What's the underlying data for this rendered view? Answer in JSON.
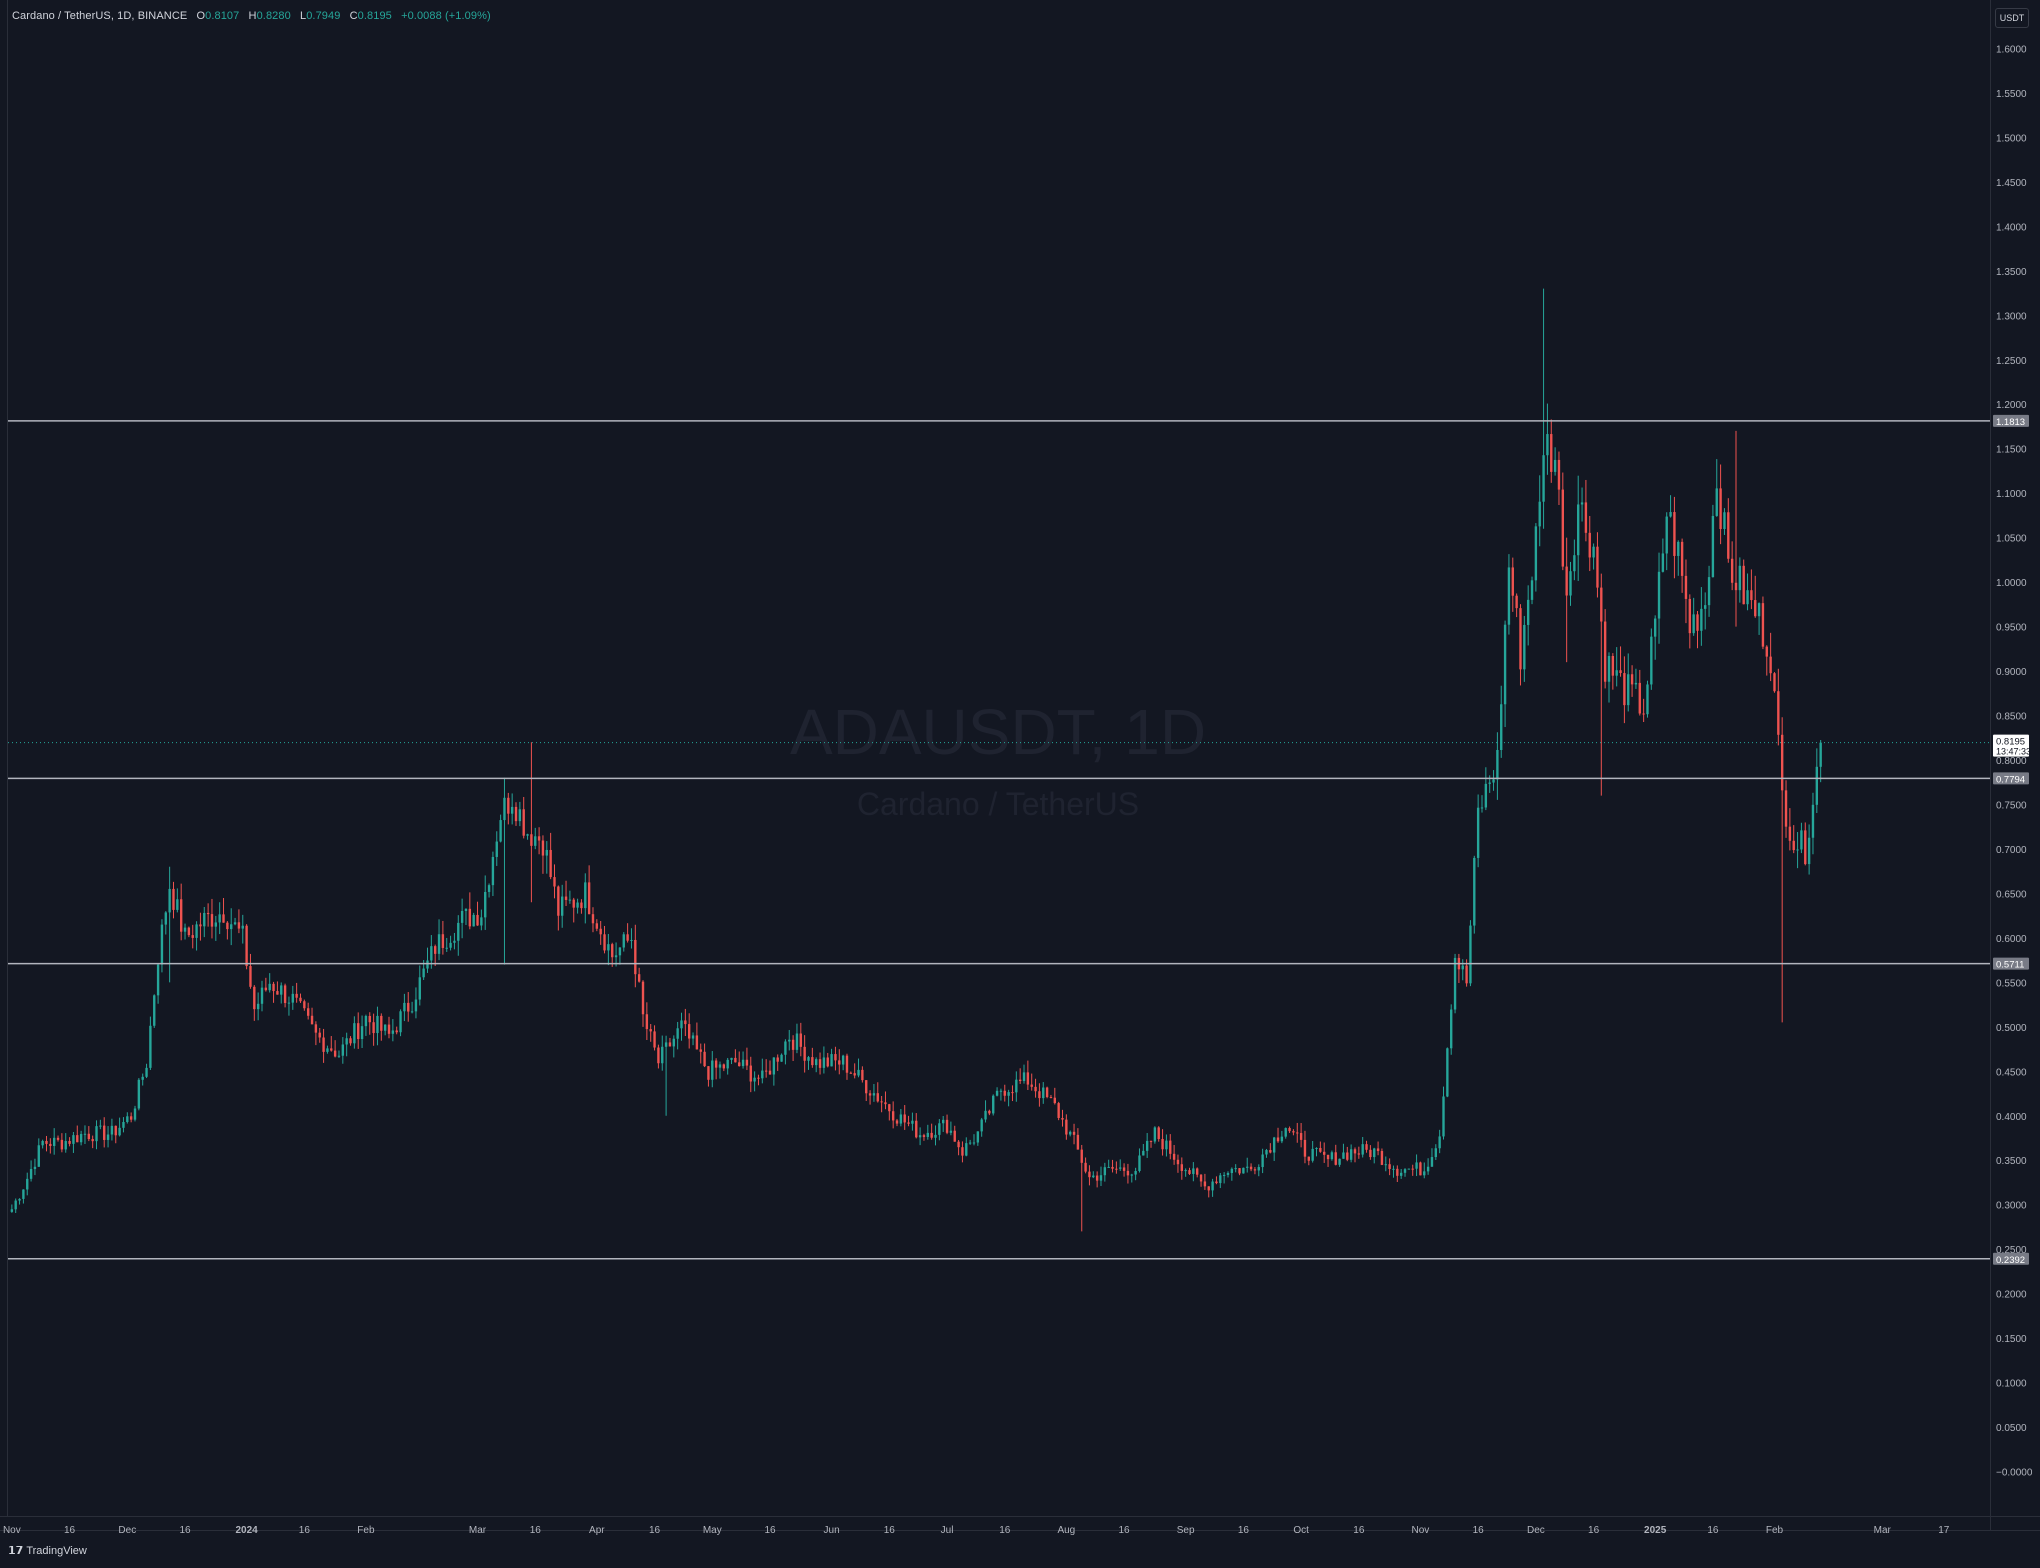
{
  "legend": {
    "symbol": "Cardano / TetherUS, 1D, BINANCE",
    "o_label": "O",
    "o": "0.8107",
    "h_label": "H",
    "h": "0.8280",
    "l_label": "L",
    "l": "0.7949",
    "c_label": "C",
    "c": "0.8195",
    "change": "+0.0088 (+1.09%)"
  },
  "watermark": {
    "title": "ADAUSDT, 1D",
    "subtitle": "Cardano / TetherUS"
  },
  "scale_button": "USDT",
  "footer": {
    "brand": "TradingView"
  },
  "current_price": {
    "value": "0.8195",
    "countdown": "13:47:33"
  },
  "colors": {
    "up": "#26a69a",
    "down": "#ef5350",
    "background": "#131722",
    "hline": "#b2b5be"
  },
  "chart_data": {
    "type": "candlestick",
    "symbol": "ADAUSDT",
    "interval": "1D",
    "ylim": [
      -0.05,
      1.65
    ],
    "y_ticks": [
      "1.6000",
      "1.5500",
      "1.5000",
      "1.4500",
      "1.4000",
      "1.3500",
      "1.3000",
      "1.2500",
      "1.2000",
      "1.1500",
      "1.1000",
      "1.0500",
      "1.0000",
      "0.9500",
      "0.9000",
      "0.8500",
      "0.8000",
      "0.7500",
      "0.7000",
      "0.6500",
      "0.6000",
      "0.5500",
      "0.5000",
      "0.4500",
      "0.4000",
      "0.3500",
      "0.3000",
      "0.2500",
      "0.2000",
      "0.1500",
      "0.1000",
      "0.0500",
      "−0.0000"
    ],
    "x_range": [
      "2023-10-31",
      "2025-03-29"
    ],
    "x_ticks": [
      {
        "label": "Nov",
        "date": "2023-11-01",
        "bold": false
      },
      {
        "label": "16",
        "date": "2023-11-16",
        "bold": false
      },
      {
        "label": "Dec",
        "date": "2023-12-01",
        "bold": false
      },
      {
        "label": "16",
        "date": "2023-12-16",
        "bold": false
      },
      {
        "label": "2024",
        "date": "2024-01-01",
        "bold": true
      },
      {
        "label": "16",
        "date": "2024-01-16",
        "bold": false
      },
      {
        "label": "Feb",
        "date": "2024-02-01",
        "bold": false
      },
      {
        "label": "Mar",
        "date": "2024-03-01",
        "bold": false
      },
      {
        "label": "16",
        "date": "2024-03-16",
        "bold": false
      },
      {
        "label": "Apr",
        "date": "2024-04-01",
        "bold": false
      },
      {
        "label": "16",
        "date": "2024-04-16",
        "bold": false
      },
      {
        "label": "May",
        "date": "2024-05-01",
        "bold": false
      },
      {
        "label": "16",
        "date": "2024-05-16",
        "bold": false
      },
      {
        "label": "Jun",
        "date": "2024-06-01",
        "bold": false
      },
      {
        "label": "16",
        "date": "2024-06-16",
        "bold": false
      },
      {
        "label": "Jul",
        "date": "2024-07-01",
        "bold": false
      },
      {
        "label": "16",
        "date": "2024-07-16",
        "bold": false
      },
      {
        "label": "Aug",
        "date": "2024-08-01",
        "bold": false
      },
      {
        "label": "16",
        "date": "2024-08-16",
        "bold": false
      },
      {
        "label": "Sep",
        "date": "2024-09-01",
        "bold": false
      },
      {
        "label": "16",
        "date": "2024-09-16",
        "bold": false
      },
      {
        "label": "Oct",
        "date": "2024-10-01",
        "bold": false
      },
      {
        "label": "16",
        "date": "2024-10-16",
        "bold": false
      },
      {
        "label": "Nov",
        "date": "2024-11-01",
        "bold": false
      },
      {
        "label": "16",
        "date": "2024-11-16",
        "bold": false
      },
      {
        "label": "Dec",
        "date": "2024-12-01",
        "bold": false
      },
      {
        "label": "16",
        "date": "2024-12-16",
        "bold": false
      },
      {
        "label": "2025",
        "date": "2025-01-01",
        "bold": true
      },
      {
        "label": "16",
        "date": "2025-01-16",
        "bold": false
      },
      {
        "label": "Feb",
        "date": "2025-02-01",
        "bold": false
      },
      {
        "label": "Mar",
        "date": "2025-03-01",
        "bold": false
      },
      {
        "label": "17",
        "date": "2025-03-17",
        "bold": false
      }
    ],
    "horizontal_lines": [
      {
        "price": 1.1813,
        "label": "1.1813"
      },
      {
        "price": 0.7794,
        "label": "0.7794"
      },
      {
        "price": 0.5711,
        "label": "0.5711"
      },
      {
        "price": 0.2392,
        "label": "0.2392"
      }
    ],
    "close_path": [
      [
        "2023-11-01",
        0.295
      ],
      [
        "2023-11-05",
        0.33
      ],
      [
        "2023-11-09",
        0.37
      ],
      [
        "2023-11-14",
        0.37
      ],
      [
        "2023-11-20",
        0.38
      ],
      [
        "2023-11-27",
        0.38
      ],
      [
        "2023-12-02",
        0.4
      ],
      [
        "2023-12-06",
        0.46
      ],
      [
        "2023-12-09",
        0.58
      ],
      [
        "2023-12-12",
        0.66
      ],
      [
        "2023-12-16",
        0.6
      ],
      [
        "2023-12-21",
        0.62
      ],
      [
        "2023-12-26",
        0.63
      ],
      [
        "2023-12-31",
        0.6
      ],
      [
        "2024-01-03",
        0.52
      ],
      [
        "2024-01-07",
        0.55
      ],
      [
        "2024-01-13",
        0.53
      ],
      [
        "2024-01-19",
        0.49
      ],
      [
        "2024-01-25",
        0.47
      ],
      [
        "2024-02-01",
        0.51
      ],
      [
        "2024-02-07",
        0.49
      ],
      [
        "2024-02-13",
        0.53
      ],
      [
        "2024-02-19",
        0.59
      ],
      [
        "2024-02-26",
        0.62
      ],
      [
        "2024-03-02",
        0.63
      ],
      [
        "2024-03-07",
        0.74
      ],
      [
        "2024-03-10",
        0.76
      ],
      [
        "2024-03-14",
        0.72
      ],
      [
        "2024-03-18",
        0.71
      ],
      [
        "2024-03-22",
        0.63
      ],
      [
        "2024-03-29",
        0.65
      ],
      [
        "2024-04-05",
        0.58
      ],
      [
        "2024-04-10",
        0.6
      ],
      [
        "2024-04-13",
        0.51
      ],
      [
        "2024-04-17",
        0.46
      ],
      [
        "2024-04-23",
        0.5
      ],
      [
        "2024-04-30",
        0.45
      ],
      [
        "2024-05-07",
        0.46
      ],
      [
        "2024-05-14",
        0.44
      ],
      [
        "2024-05-21",
        0.49
      ],
      [
        "2024-05-28",
        0.46
      ],
      [
        "2024-06-04",
        0.46
      ],
      [
        "2024-06-11",
        0.43
      ],
      [
        "2024-06-18",
        0.4
      ],
      [
        "2024-06-24",
        0.38
      ],
      [
        "2024-07-01",
        0.39
      ],
      [
        "2024-07-05",
        0.36
      ],
      [
        "2024-07-09",
        0.38
      ],
      [
        "2024-07-15",
        0.43
      ],
      [
        "2024-07-22",
        0.44
      ],
      [
        "2024-07-29",
        0.41
      ],
      [
        "2024-08-03",
        0.37
      ],
      [
        "2024-08-07",
        0.33
      ],
      [
        "2024-08-13",
        0.34
      ],
      [
        "2024-08-19",
        0.34
      ],
      [
        "2024-08-24",
        0.38
      ],
      [
        "2024-08-30",
        0.35
      ],
      [
        "2024-09-06",
        0.32
      ],
      [
        "2024-09-12",
        0.34
      ],
      [
        "2024-09-18",
        0.34
      ],
      [
        "2024-09-27",
        0.39
      ],
      [
        "2024-10-02",
        0.36
      ],
      [
        "2024-10-08",
        0.35
      ],
      [
        "2024-10-14",
        0.36
      ],
      [
        "2024-10-20",
        0.36
      ],
      [
        "2024-10-26",
        0.34
      ],
      [
        "2024-11-02",
        0.34
      ],
      [
        "2024-11-06",
        0.38
      ],
      [
        "2024-11-10",
        0.58
      ],
      [
        "2024-11-13",
        0.55
      ],
      [
        "2024-11-16",
        0.74
      ],
      [
        "2024-11-21",
        0.8
      ],
      [
        "2024-11-24",
        1.02
      ],
      [
        "2024-11-27",
        0.92
      ],
      [
        "2024-12-02",
        1.08
      ],
      [
        "2024-12-03",
        1.16
      ],
      [
        "2024-12-06",
        1.14
      ],
      [
        "2024-12-09",
        0.99
      ],
      [
        "2024-12-12",
        1.09
      ],
      [
        "2024-12-16",
        1.04
      ],
      [
        "2024-12-19",
        0.91
      ],
      [
        "2024-12-24",
        0.88
      ],
      [
        "2024-12-29",
        0.86
      ],
      [
        "2025-01-01",
        0.95
      ],
      [
        "2025-01-04",
        1.08
      ],
      [
        "2025-01-07",
        1.03
      ],
      [
        "2025-01-10",
        0.95
      ],
      [
        "2025-01-14",
        0.98
      ],
      [
        "2025-01-17",
        1.12
      ],
      [
        "2025-01-20",
        1.02
      ],
      [
        "2025-01-25",
        0.98
      ],
      [
        "2025-01-28",
        0.96
      ],
      [
        "2025-01-31",
        0.92
      ],
      [
        "2025-02-03",
        0.76
      ],
      [
        "2025-02-06",
        0.71
      ],
      [
        "2025-02-09",
        0.7
      ],
      [
        "2025-02-11",
        0.76
      ],
      [
        "2025-02-13",
        0.8195
      ]
    ],
    "wick_spikes": [
      {
        "date": "2023-12-12",
        "high": 0.68,
        "low": 0.55
      },
      {
        "date": "2024-03-08",
        "high": 0.78,
        "low": 0.57
      },
      {
        "date": "2024-03-15",
        "high": 0.82,
        "low": 0.64
      },
      {
        "date": "2024-04-19",
        "high": 0.49,
        "low": 0.4
      },
      {
        "date": "2024-08-05",
        "high": 0.36,
        "low": 0.27
      },
      {
        "date": "2024-12-03",
        "high": 1.33,
        "low": 1.06
      },
      {
        "date": "2024-12-09",
        "high": 1.05,
        "low": 0.91
      },
      {
        "date": "2024-12-18",
        "high": 0.97,
        "low": 0.76
      },
      {
        "date": "2025-01-22",
        "high": 1.17,
        "low": 0.95
      },
      {
        "date": "2025-02-03",
        "high": 0.82,
        "low": 0.505
      }
    ]
  }
}
